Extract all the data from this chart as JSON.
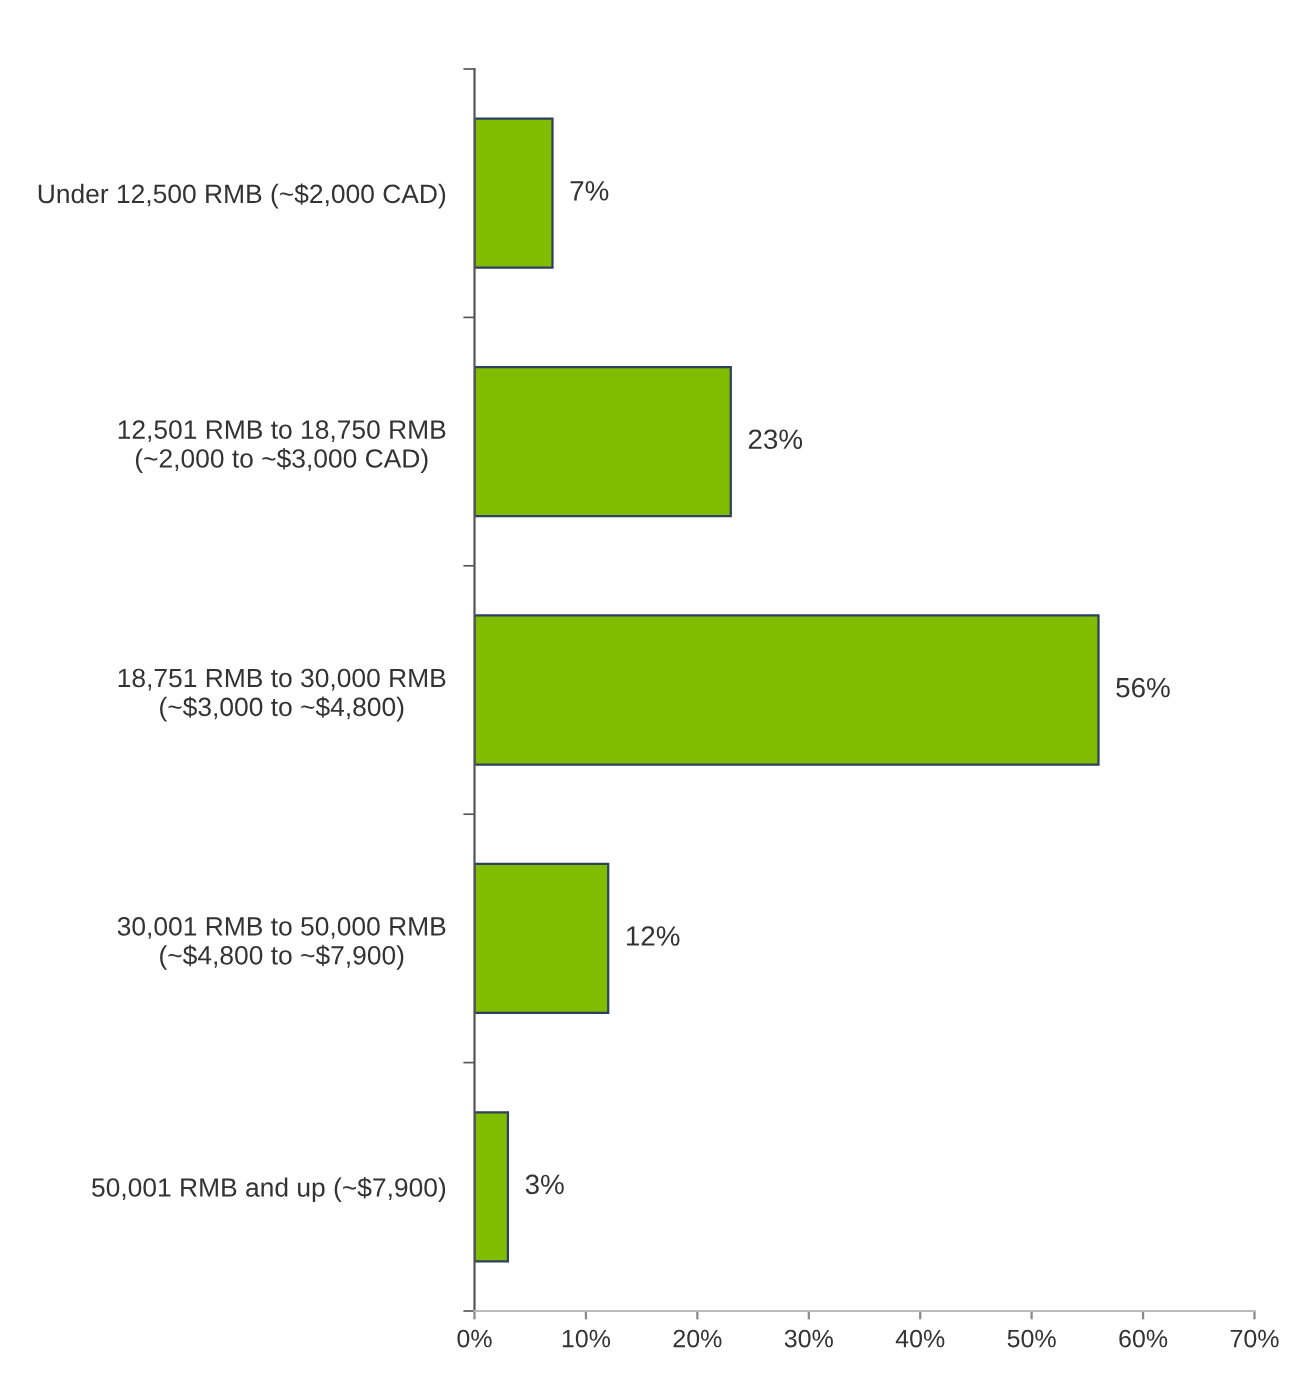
{
  "chart_data": {
    "type": "bar",
    "orientation": "horizontal",
    "categories": [
      "Under 12,500 RMB (~$2,000 CAD)",
      "12,501 RMB to 18,750 RMB\n(~2,000 to ~$3,000 CAD)",
      "18,751 RMB to 30,000 RMB\n(~$3,000 to ~$4,800)",
      "30,001 RMB to 50,000 RMB\n(~$4,800 to ~$7,900)",
      "50,001 RMB and up (~$7,900)"
    ],
    "values": [
      7,
      23,
      56,
      12,
      3
    ],
    "value_labels": [
      "7%",
      "23%",
      "56%",
      "12%",
      "3%"
    ],
    "color": "#80bc00",
    "xlim": [
      0,
      70
    ],
    "xticks": [
      {
        "value": 0,
        "label": "0%"
      },
      {
        "value": 10,
        "label": "10%"
      },
      {
        "value": 20,
        "label": "20%"
      },
      {
        "value": 30,
        "label": "30%"
      },
      {
        "value": 40,
        "label": "40%"
      },
      {
        "value": 50,
        "label": "50%"
      },
      {
        "value": 60,
        "label": "60%"
      },
      {
        "value": 70,
        "label": "70%"
      }
    ],
    "grid": false
  }
}
